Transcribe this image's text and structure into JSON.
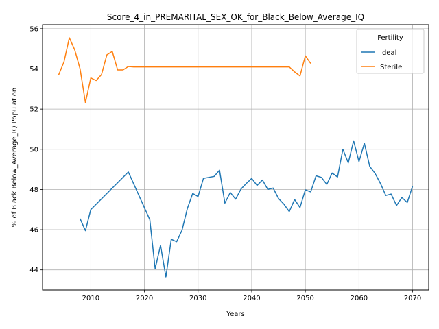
{
  "chart_data": {
    "type": "line",
    "title": "Score_4_in_PREMARITAL_SEX_OK_for_Black_Below_Average_IQ",
    "xlabel": "Years",
    "ylabel": "% of Black Below_Average_IQ Population",
    "xlim": [
      2001,
      2073
    ],
    "ylim": [
      43.0,
      56.2
    ],
    "xticks": [
      2010,
      2020,
      2030,
      2040,
      2050,
      2060,
      2070
    ],
    "yticks": [
      44,
      46,
      48,
      50,
      52,
      54,
      56
    ],
    "grid": true,
    "legend": {
      "title": "Fertility",
      "position": "top-right"
    },
    "series": [
      {
        "name": "Ideal",
        "color": "#1f77b4",
        "points": [
          [
            2008,
            46.55
          ],
          [
            2009,
            45.95
          ],
          [
            2010,
            47.0
          ],
          [
            2017,
            48.87
          ],
          [
            2021,
            46.5
          ],
          [
            2022,
            44.05
          ],
          [
            2023,
            45.22
          ],
          [
            2024,
            43.65
          ],
          [
            2025,
            45.52
          ],
          [
            2026,
            45.4
          ],
          [
            2027,
            45.97
          ],
          [
            2028,
            47.05
          ],
          [
            2029,
            47.8
          ],
          [
            2030,
            47.65
          ],
          [
            2031,
            48.55
          ],
          [
            2032,
            48.6
          ],
          [
            2033,
            48.65
          ],
          [
            2034,
            48.96
          ],
          [
            2035,
            47.32
          ],
          [
            2036,
            47.85
          ],
          [
            2037,
            47.52
          ],
          [
            2038,
            48.02
          ],
          [
            2039,
            48.3
          ],
          [
            2040,
            48.55
          ],
          [
            2041,
            48.2
          ],
          [
            2042,
            48.47
          ],
          [
            2043,
            48.0
          ],
          [
            2044,
            48.07
          ],
          [
            2045,
            47.55
          ],
          [
            2046,
            47.27
          ],
          [
            2047,
            46.9
          ],
          [
            2048,
            47.5
          ],
          [
            2049,
            47.1
          ],
          [
            2050,
            47.98
          ],
          [
            2051,
            47.88
          ],
          [
            2052,
            48.68
          ],
          [
            2053,
            48.6
          ],
          [
            2054,
            48.25
          ],
          [
            2055,
            48.82
          ],
          [
            2056,
            48.62
          ],
          [
            2057,
            50.0
          ],
          [
            2058,
            49.32
          ],
          [
            2059,
            50.42
          ],
          [
            2060,
            49.38
          ],
          [
            2061,
            50.3
          ],
          [
            2062,
            49.15
          ],
          [
            2063,
            48.8
          ],
          [
            2064,
            48.3
          ],
          [
            2065,
            47.7
          ],
          [
            2066,
            47.77
          ],
          [
            2067,
            47.2
          ],
          [
            2068,
            47.6
          ],
          [
            2069,
            47.35
          ],
          [
            2070,
            48.17
          ]
        ]
      },
      {
        "name": "Sterile",
        "color": "#ff7f0e",
        "points": [
          [
            2004,
            53.7
          ],
          [
            2005,
            54.35
          ],
          [
            2006,
            55.55
          ],
          [
            2007,
            54.95
          ],
          [
            2008,
            54.0
          ],
          [
            2009,
            52.32
          ],
          [
            2010,
            53.55
          ],
          [
            2011,
            53.42
          ],
          [
            2012,
            53.72
          ],
          [
            2013,
            54.7
          ],
          [
            2014,
            54.87
          ],
          [
            2015,
            53.95
          ],
          [
            2016,
            53.95
          ],
          [
            2017,
            54.12
          ],
          [
            2018,
            54.1
          ],
          [
            2020,
            54.1
          ],
          [
            2030,
            54.1
          ],
          [
            2040,
            54.1
          ],
          [
            2047,
            54.1
          ],
          [
            2048,
            53.85
          ],
          [
            2049,
            53.65
          ],
          [
            2050,
            54.65
          ],
          [
            2051,
            54.27
          ]
        ]
      }
    ]
  }
}
